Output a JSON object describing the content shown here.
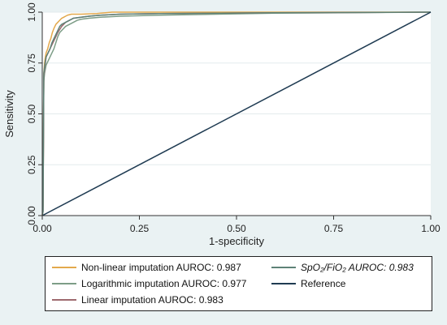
{
  "chart_data": {
    "type": "line",
    "title": "",
    "xlabel": "1-specificity",
    "ylabel": "Sensitivity",
    "xlim": [
      0,
      1
    ],
    "ylim": [
      0,
      1
    ],
    "xticks": [
      "0.00",
      "0.25",
      "0.50",
      "0.75",
      "1.00"
    ],
    "yticks": [
      "0.00",
      "0.25",
      "0.50",
      "0.75",
      "1.00"
    ],
    "grid": true,
    "legend_placement": "bottom",
    "series": [
      {
        "name": "Non-linear imputation AUROC: 0.987",
        "color": "#e3a94c",
        "x": [
          0,
          0.002,
          0.004,
          0.006,
          0.008,
          0.01,
          0.014,
          0.018,
          0.022,
          0.026,
          0.03,
          0.035,
          0.04,
          0.045,
          0.05,
          0.055,
          0.06,
          0.065,
          0.075,
          0.1,
          0.14,
          0.18,
          1.0
        ],
        "y": [
          0,
          0.05,
          0.7,
          0.75,
          0.78,
          0.8,
          0.82,
          0.85,
          0.87,
          0.9,
          0.92,
          0.94,
          0.95,
          0.96,
          0.97,
          0.975,
          0.98,
          0.985,
          0.99,
          0.99,
          0.993,
          1.0,
          1.0
        ]
      },
      {
        "name": "Logarithmic imputation AUROC: 0.977",
        "color": "#7d9d87",
        "x": [
          0,
          0.002,
          0.004,
          0.006,
          0.008,
          0.01,
          0.015,
          0.02,
          0.025,
          0.03,
          0.035,
          0.04,
          0.045,
          0.05,
          0.055,
          0.06,
          0.07,
          0.08,
          0.09,
          0.1,
          0.12,
          0.15,
          0.2,
          0.3,
          0.45,
          0.6,
          1.0
        ],
        "y": [
          0,
          0.02,
          0.66,
          0.7,
          0.72,
          0.74,
          0.76,
          0.78,
          0.8,
          0.82,
          0.85,
          0.88,
          0.9,
          0.91,
          0.92,
          0.93,
          0.94,
          0.95,
          0.96,
          0.965,
          0.97,
          0.975,
          0.98,
          0.985,
          0.99,
          0.995,
          1.0
        ]
      },
      {
        "name": "Linear imputation AUROC: 0.983",
        "color": "#9e6a6f",
        "x": [
          0,
          0.002,
          0.004,
          0.006,
          0.008,
          0.01,
          0.015,
          0.02,
          0.025,
          0.03,
          0.035,
          0.04,
          0.05,
          0.06,
          0.07,
          0.08,
          0.1,
          0.12,
          0.15,
          0.2,
          0.3,
          0.6,
          1.0
        ],
        "y": [
          0,
          0.03,
          0.68,
          0.72,
          0.75,
          0.78,
          0.8,
          0.82,
          0.84,
          0.86,
          0.88,
          0.9,
          0.93,
          0.95,
          0.96,
          0.97,
          0.975,
          0.98,
          0.985,
          0.99,
          0.993,
          0.997,
          1.0
        ]
      },
      {
        "name": "SpO₂/FiO₂ AUROC: 0.983",
        "color": "#5e8277",
        "x": [
          0,
          0.002,
          0.004,
          0.006,
          0.008,
          0.01,
          0.015,
          0.02,
          0.025,
          0.03,
          0.035,
          0.04,
          0.045,
          0.05,
          0.06,
          0.07,
          0.08,
          0.1,
          0.12,
          0.15,
          0.2,
          0.3,
          0.6,
          1.0
        ],
        "y": [
          0,
          0.02,
          0.7,
          0.73,
          0.76,
          0.78,
          0.8,
          0.82,
          0.85,
          0.87,
          0.89,
          0.91,
          0.93,
          0.94,
          0.95,
          0.96,
          0.97,
          0.975,
          0.98,
          0.985,
          0.99,
          0.993,
          0.997,
          1.0
        ]
      },
      {
        "name": "Reference",
        "color": "#1f3b52",
        "x": [
          0,
          1
        ],
        "y": [
          0,
          1
        ]
      }
    ]
  },
  "legend": {
    "items": [
      {
        "label": "Non-linear imputation AUROC: 0.987",
        "color": "#e3a94c"
      },
      {
        "label": "SpO₂/FiO₂ AUROC: 0.983",
        "color": "#5e8277"
      },
      {
        "label": "Logarithmic imputation AUROC: 0.977",
        "color": "#7d9d87"
      },
      {
        "label": "Reference",
        "color": "#1f3b52"
      },
      {
        "label": "Linear imputation AUROC: 0.983",
        "color": "#9e6a6f"
      }
    ]
  }
}
